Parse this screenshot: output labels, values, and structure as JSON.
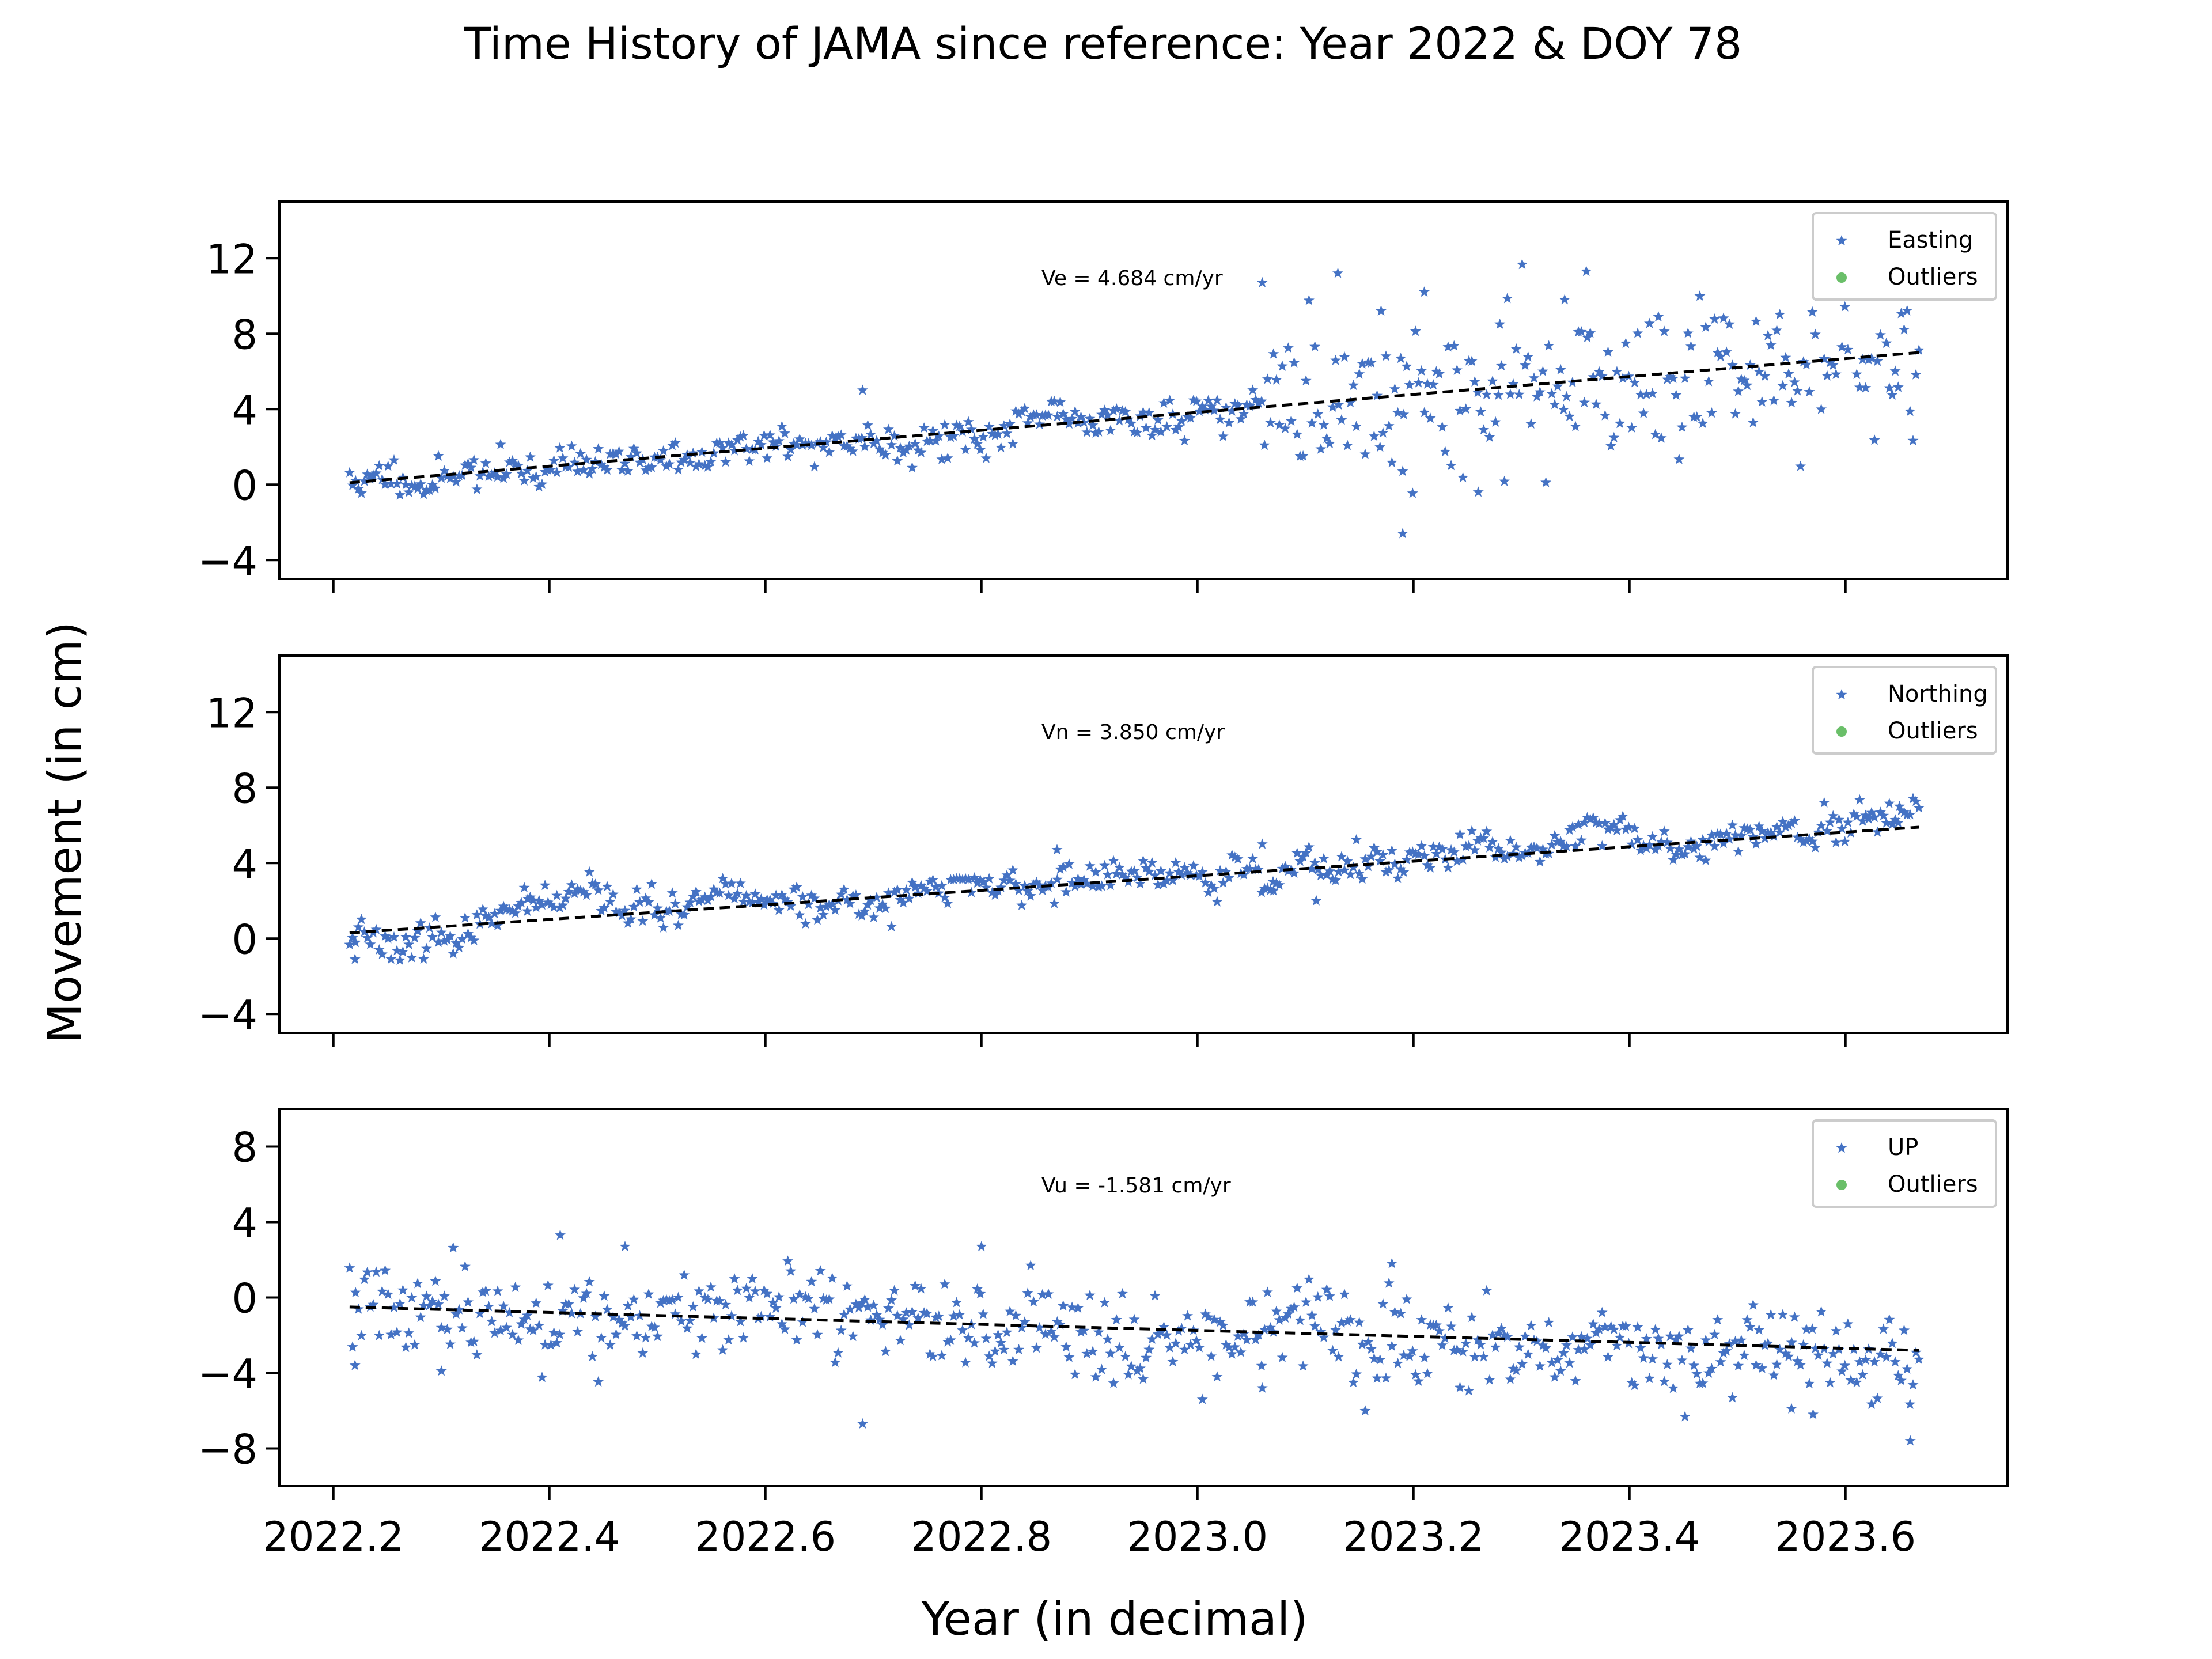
{
  "title": "Time History of JAMA since reference: Year 2022 & DOY 78",
  "xlabel": "Year (in decimal)",
  "ylabel": "Movement (in cm)",
  "colors": {
    "data": "#4472c4",
    "outlier": "#6abf69",
    "trend": "#000000"
  },
  "chart_data": [
    {
      "type": "scatter",
      "component": "Easting",
      "legend": [
        "Easting",
        "Outliers"
      ],
      "velocity_label": "Ve =  4.684 cm/yr",
      "xlim": [
        2022.15,
        2023.75
      ],
      "ylim": [
        -5,
        15
      ],
      "yticks": [
        -4,
        0,
        4,
        8,
        12
      ],
      "xticks": [
        2022.2,
        2022.4,
        2022.6,
        2022.8,
        2023.0,
        2023.2,
        2023.4,
        2023.6
      ],
      "show_xtick_labels": false,
      "trend": {
        "x": [
          2022.215,
          2023.668
        ],
        "y": [
          0.1,
          7.0
        ]
      },
      "outliers": [],
      "series_params": {
        "x_start": 2022.215,
        "x_end": 2023.668,
        "n": 531,
        "start": 0.1,
        "slope": 4.684,
        "noise_early": 0.45,
        "noise_late": 2.2,
        "break_x": 2023.06,
        "seed": 11
      },
      "extra_points": [
        [
          2022.69,
          5.0
        ],
        [
          2023.06,
          10.7
        ],
        [
          2023.13,
          11.2
        ],
        [
          2023.17,
          9.2
        ],
        [
          2023.19,
          -2.6
        ],
        [
          2023.21,
          10.2
        ],
        [
          2023.26,
          -0.4
        ],
        [
          2023.36,
          11.3
        ],
        [
          2023.34,
          9.8
        ],
        [
          2023.61,
          11.5
        ],
        [
          2023.19,
          0.7
        ],
        [
          2023.28,
          8.5
        ]
      ]
    },
    {
      "type": "scatter",
      "component": "Northing",
      "legend": [
        "Northing",
        "Outliers"
      ],
      "velocity_label": "Vn =  3.850 cm/yr",
      "xlim": [
        2022.15,
        2023.75
      ],
      "ylim": [
        -5,
        15
      ],
      "yticks": [
        -4,
        0,
        4,
        8,
        12
      ],
      "xticks": [
        2022.2,
        2022.4,
        2022.6,
        2022.8,
        2023.0,
        2023.2,
        2023.4,
        2023.6
      ],
      "show_xtick_labels": false,
      "trend": {
        "x": [
          2022.215,
          2023.668
        ],
        "y": [
          0.3,
          5.9
        ]
      },
      "outliers": [],
      "series_params": {
        "x_start": 2022.215,
        "x_end": 2023.668,
        "n": 531,
        "start": 0.3,
        "slope": 3.85,
        "noise_early": 0.4,
        "noise_late": 0.45,
        "break_x": 2024.0,
        "seed": 23
      },
      "extra_points": [
        [
          2022.22,
          -1.1
        ],
        [
          2022.38,
          2.1
        ],
        [
          2022.87,
          4.7
        ],
        [
          2023.06,
          5.0
        ],
        [
          2023.11,
          2.0
        ],
        [
          2023.65,
          7.0
        ],
        [
          2023.07,
          3.0
        ]
      ]
    },
    {
      "type": "scatter",
      "component": "UP",
      "legend": [
        "UP",
        "Outliers"
      ],
      "velocity_label": "Vu = -1.581 cm/yr",
      "xlim": [
        2022.15,
        2023.75
      ],
      "ylim": [
        -10,
        10
      ],
      "yticks": [
        -8,
        -4,
        0,
        4,
        8
      ],
      "xticks": [
        2022.2,
        2022.4,
        2022.6,
        2022.8,
        2023.0,
        2023.2,
        2023.4,
        2023.6
      ],
      "show_xtick_labels": true,
      "trend": {
        "x": [
          2022.215,
          2023.668
        ],
        "y": [
          -0.5,
          -2.8
        ]
      },
      "outliers": [],
      "series_params": {
        "x_start": 2022.215,
        "x_end": 2023.668,
        "n": 531,
        "start": -0.5,
        "slope": -1.581,
        "noise_early": 1.2,
        "noise_late": 1.4,
        "break_x": 2024.0,
        "seed": 37
      },
      "extra_points": [
        [
          2022.41,
          3.3
        ],
        [
          2022.47,
          2.7
        ],
        [
          2022.69,
          -6.7
        ],
        [
          2022.8,
          2.7
        ],
        [
          2022.22,
          -3.6
        ],
        [
          2022.3,
          -3.9
        ],
        [
          2023.55,
          -5.9
        ],
        [
          2023.57,
          -6.2
        ],
        [
          2023.66,
          -7.6
        ],
        [
          2023.06,
          -4.8
        ],
        [
          2023.18,
          1.8
        ]
      ]
    }
  ]
}
